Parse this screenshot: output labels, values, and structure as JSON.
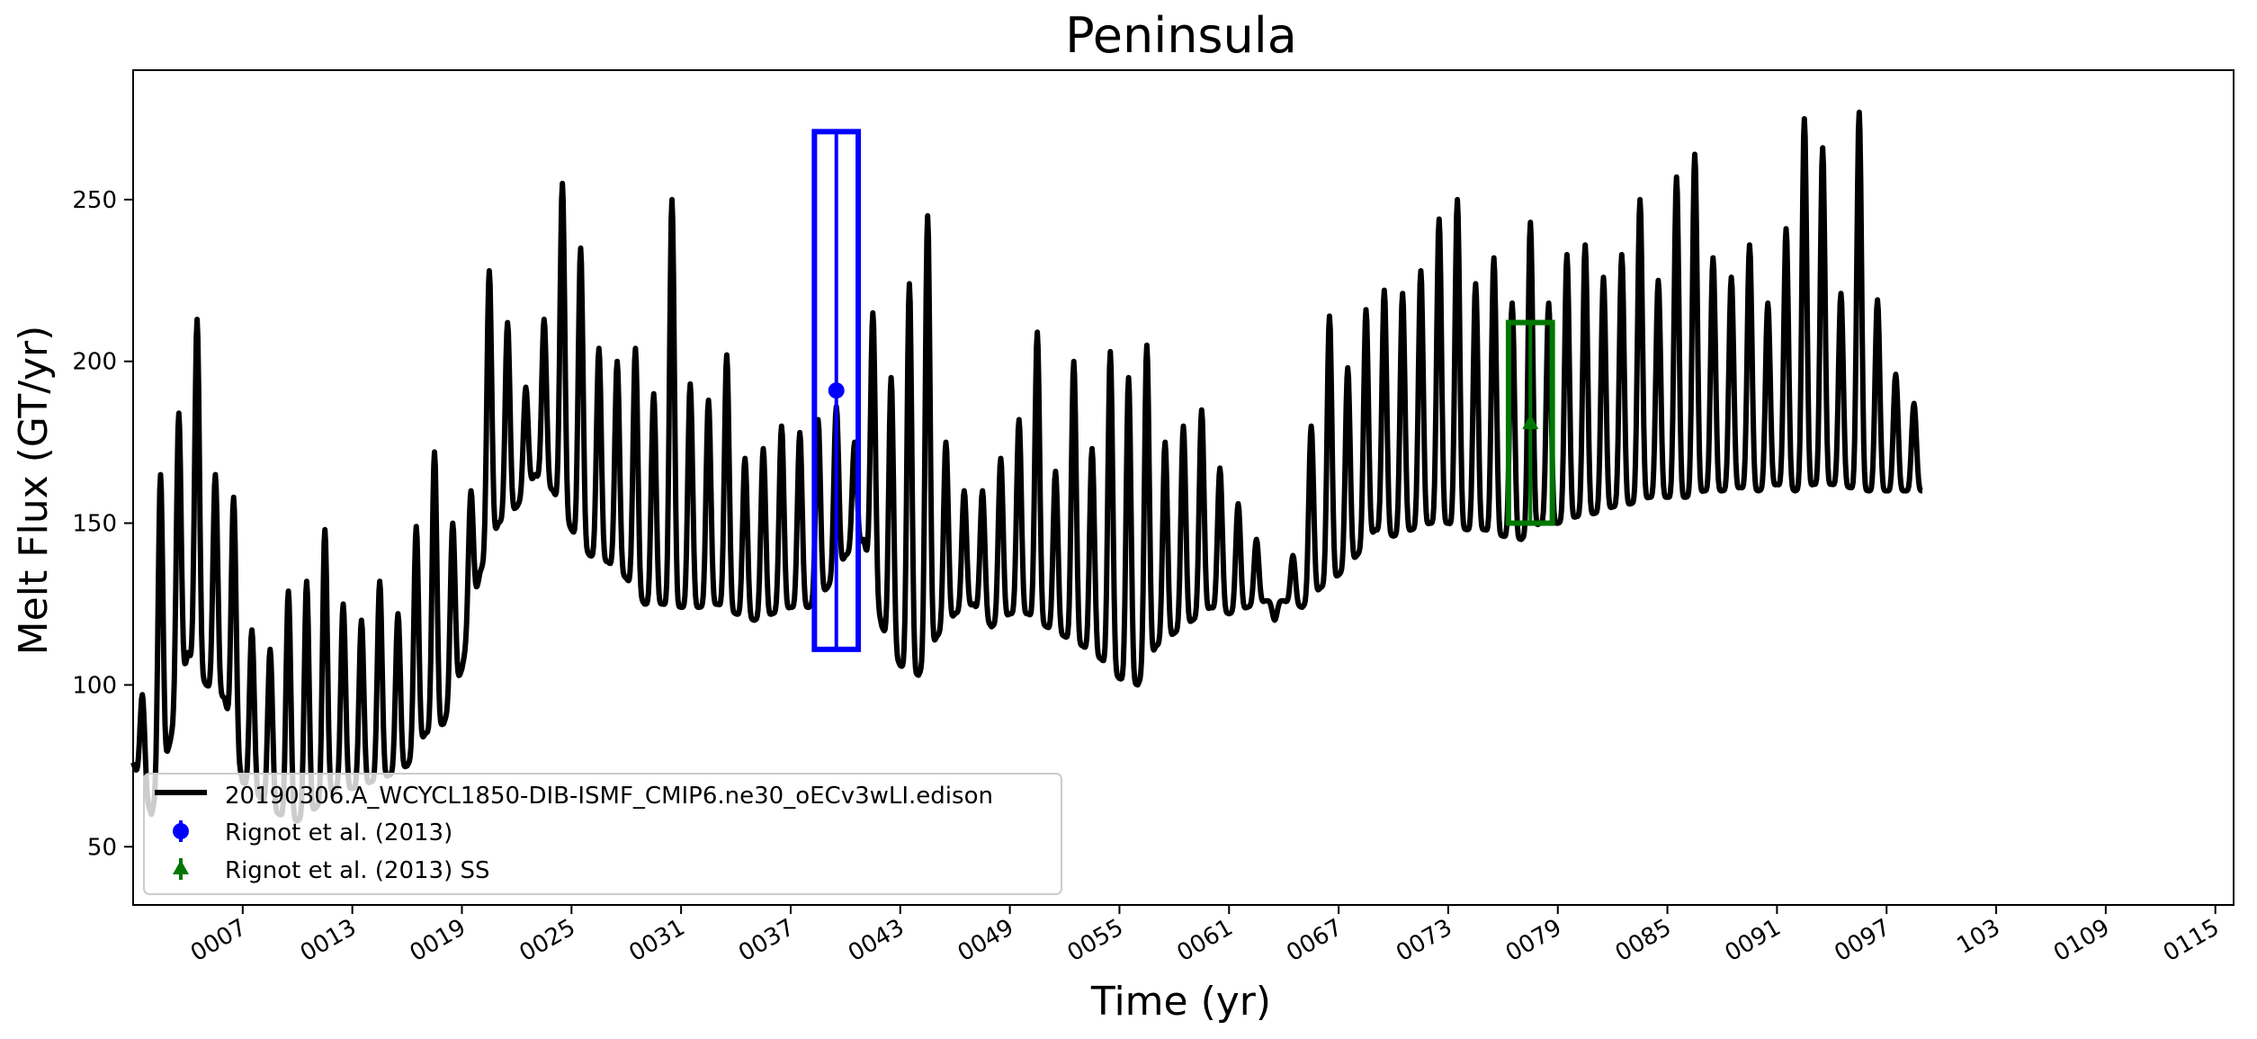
{
  "chart_data": {
    "type": "line",
    "title": "Peninsula",
    "xlabel": "Time (yr)",
    "ylabel": "Melt Flux (GT/yr)",
    "xlim": [
      1,
      116
    ],
    "ylim": [
      32,
      290
    ],
    "x_ticks": [
      7,
      13,
      19,
      25,
      31,
      37,
      43,
      49,
      55,
      61,
      67,
      73,
      79,
      85,
      91,
      97,
      103,
      109,
      115
    ],
    "x_tick_labels": [
      "0007",
      "0013",
      "0019",
      "0025",
      "0031",
      "0037",
      "0043",
      "0049",
      "0055",
      "0061",
      "0067",
      "0073",
      "0079",
      "0085",
      "0091",
      "0097",
      "103",
      "0109",
      "0115"
    ],
    "y_ticks": [
      50,
      100,
      150,
      200,
      250
    ],
    "y_tick_labels": [
      "50",
      "100",
      "150",
      "200",
      "250"
    ],
    "legend_position": "lower-left",
    "series": [
      {
        "name": "20190306.A_WCYCL1850-DIB-ISMF_CMIP6.ne30_oECv3wLI.edison",
        "color": "#000000",
        "annual_peaks": [
          97,
          165,
          184,
          213,
          165,
          158,
          117,
          111,
          129,
          132,
          148,
          125,
          120,
          132,
          122,
          149,
          172,
          150,
          160,
          228,
          212,
          192,
          213,
          255,
          235,
          204,
          200,
          204,
          190,
          250,
          193,
          188,
          202,
          170,
          173,
          180,
          178,
          182,
          186,
          175,
          215,
          195,
          224,
          245,
          175,
          160,
          160,
          170,
          182,
          209,
          166,
          200,
          173,
          203,
          195,
          205,
          175,
          180,
          185,
          167,
          156,
          145,
          120,
          140,
          180,
          214,
          198,
          216,
          222,
          221,
          228,
          244,
          250,
          224,
          232,
          218,
          243,
          218,
          233,
          236,
          226,
          233,
          250,
          225,
          257,
          264,
          232,
          226,
          236,
          218,
          241,
          275,
          266,
          221,
          277,
          219,
          196,
          187
        ],
        "annual_troughs": [
          76,
          60,
          82,
          110,
          100,
          96,
          70,
          65,
          60,
          58,
          62,
          68,
          68,
          70,
          72,
          75,
          85,
          88,
          105,
          135,
          150,
          155,
          165,
          160,
          148,
          140,
          138,
          133,
          125,
          125,
          124,
          124,
          125,
          122,
          120,
          122,
          124,
          124,
          130,
          140,
          145,
          118,
          106,
          103,
          115,
          122,
          125,
          118,
          122,
          122,
          118,
          115,
          112,
          108,
          102,
          100,
          112,
          116,
          120,
          124,
          122,
          124,
          126,
          126,
          124,
          130,
          134,
          140,
          148,
          146,
          148,
          150,
          150,
          148,
          148,
          146,
          145,
          150,
          150,
          152,
          153,
          155,
          156,
          158,
          158,
          158,
          160,
          160,
          161,
          160,
          162,
          160,
          162,
          162,
          161,
          160,
          160,
          160
        ]
      },
      {
        "name": "Rignot et al. (2013)",
        "color": "#0000ff",
        "type": "errorbar",
        "x": 39.5,
        "y": 191,
        "ymin": 111,
        "ymax": 271,
        "xmin": 38.3,
        "xmax": 40.7
      },
      {
        "name": "Rignot et al. (2013) SS",
        "color": "#007700",
        "type": "errorbar",
        "x": 77.5,
        "y": 181,
        "ymin": 150,
        "ymax": 212,
        "xmin": 76.3,
        "xmax": 78.7
      }
    ]
  }
}
